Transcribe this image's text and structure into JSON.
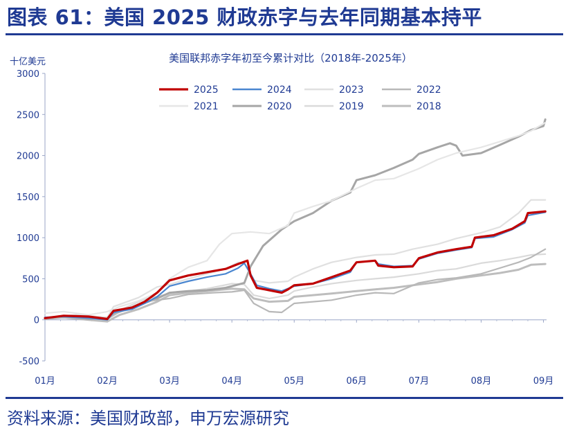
{
  "figure_title": "图表 61：美国 2025 财政赤字与去年同期基本持平",
  "source_note": "资料来源：美国财政部，申万宏源研究",
  "colors": {
    "brand": "#1f3a93",
    "axis_text": "#1f3a93",
    "axis_line": "#9aa6c7"
  },
  "chart_data": {
    "type": "line",
    "title": "美国联邦赤字年初至今累计对比（2018年-2025年）",
    "ylabel": "十亿美元",
    "xlabel": "",
    "ylim": [
      -500,
      3000
    ],
    "yticks": [
      -500,
      0,
      500,
      1000,
      1500,
      2000,
      2500,
      3000
    ],
    "xlim": [
      1,
      9.05
    ],
    "xtick_labels": [
      "01月",
      "02月",
      "03月",
      "04月",
      "05月",
      "06月",
      "07月",
      "08月",
      "09月"
    ],
    "grid": false,
    "legend_position": "top-center",
    "series": [
      {
        "name": "2025",
        "color": "#c00000",
        "width": 3.2,
        "points": [
          [
            1,
            20
          ],
          [
            1.3,
            50
          ],
          [
            1.7,
            40
          ],
          [
            2,
            10
          ],
          [
            2.1,
            110
          ],
          [
            2.4,
            150
          ],
          [
            2.6,
            220
          ],
          [
            2.8,
            330
          ],
          [
            3,
            480
          ],
          [
            3.3,
            540
          ],
          [
            3.6,
            580
          ],
          [
            3.9,
            620
          ],
          [
            4.1,
            680
          ],
          [
            4.25,
            720
          ],
          [
            4.3,
            540
          ],
          [
            4.4,
            390
          ],
          [
            4.6,
            360
          ],
          [
            4.8,
            330
          ],
          [
            4.9,
            370
          ],
          [
            5,
            420
          ],
          [
            5.3,
            440
          ],
          [
            5.6,
            520
          ],
          [
            5.9,
            600
          ],
          [
            6,
            700
          ],
          [
            6.3,
            720
          ],
          [
            6.35,
            660
          ],
          [
            6.6,
            640
          ],
          [
            6.9,
            650
          ],
          [
            7,
            750
          ],
          [
            7.3,
            820
          ],
          [
            7.6,
            860
          ],
          [
            7.85,
            890
          ],
          [
            7.9,
            1000
          ],
          [
            8.2,
            1030
          ],
          [
            8.5,
            1110
          ],
          [
            8.7,
            1200
          ],
          [
            8.75,
            1300
          ],
          [
            9.03,
            1320
          ]
        ]
      },
      {
        "name": "2024",
        "color": "#4a86d0",
        "width": 2.2,
        "points": [
          [
            1,
            30
          ],
          [
            1.3,
            40
          ],
          [
            1.7,
            20
          ],
          [
            2,
            0
          ],
          [
            2.1,
            90
          ],
          [
            2.4,
            130
          ],
          [
            2.6,
            200
          ],
          [
            2.8,
            280
          ],
          [
            3,
            410
          ],
          [
            3.3,
            470
          ],
          [
            3.6,
            520
          ],
          [
            3.9,
            560
          ],
          [
            4.1,
            630
          ],
          [
            4.2,
            690
          ],
          [
            4.3,
            560
          ],
          [
            4.4,
            420
          ],
          [
            4.6,
            380
          ],
          [
            4.8,
            350
          ],
          [
            4.9,
            380
          ],
          [
            5,
            410
          ],
          [
            5.3,
            440
          ],
          [
            5.6,
            500
          ],
          [
            5.9,
            580
          ],
          [
            6,
            700
          ],
          [
            6.3,
            720
          ],
          [
            6.35,
            680
          ],
          [
            6.6,
            650
          ],
          [
            6.9,
            660
          ],
          [
            7,
            740
          ],
          [
            7.3,
            810
          ],
          [
            7.6,
            850
          ],
          [
            7.85,
            880
          ],
          [
            7.9,
            990
          ],
          [
            8.2,
            1010
          ],
          [
            8.5,
            1100
          ],
          [
            8.7,
            1180
          ],
          [
            8.75,
            1270
          ],
          [
            9.03,
            1310
          ]
        ]
      },
      {
        "name": "2023",
        "color": "#e0e0e0",
        "width": 2.2,
        "points": [
          [
            1,
            30
          ],
          [
            1.5,
            60
          ],
          [
            2,
            30
          ],
          [
            2.1,
            160
          ],
          [
            2.5,
            270
          ],
          [
            2.8,
            400
          ],
          [
            3,
            430
          ],
          [
            3.3,
            500
          ],
          [
            3.6,
            560
          ],
          [
            3.9,
            620
          ],
          [
            4.1,
            700
          ],
          [
            4.2,
            690
          ],
          [
            4.35,
            480
          ],
          [
            4.6,
            450
          ],
          [
            4.9,
            470
          ],
          [
            5,
            520
          ],
          [
            5.3,
            620
          ],
          [
            5.6,
            700
          ],
          [
            6,
            760
          ],
          [
            6.3,
            790
          ],
          [
            6.6,
            800
          ],
          [
            6.9,
            860
          ],
          [
            7.3,
            920
          ],
          [
            7.6,
            990
          ],
          [
            8,
            1060
          ],
          [
            8.3,
            1130
          ],
          [
            8.6,
            1300
          ],
          [
            8.8,
            1460
          ],
          [
            9.03,
            1460
          ]
        ]
      },
      {
        "name": "2022",
        "color": "#b8b8b8",
        "width": 2.2,
        "points": [
          [
            1,
            30
          ],
          [
            1.5,
            20
          ],
          [
            2,
            10
          ],
          [
            2.2,
            100
          ],
          [
            2.6,
            220
          ],
          [
            3,
            260
          ],
          [
            3.3,
            310
          ],
          [
            3.7,
            330
          ],
          [
            4,
            340
          ],
          [
            4.2,
            360
          ],
          [
            4.35,
            200
          ],
          [
            4.6,
            100
          ],
          [
            4.8,
            90
          ],
          [
            5,
            200
          ],
          [
            5.3,
            220
          ],
          [
            5.6,
            240
          ],
          [
            6,
            300
          ],
          [
            6.3,
            330
          ],
          [
            6.6,
            320
          ],
          [
            7,
            450
          ],
          [
            7.3,
            490
          ],
          [
            7.6,
            510
          ],
          [
            8,
            560
          ],
          [
            8.3,
            630
          ],
          [
            8.6,
            700
          ],
          [
            8.8,
            760
          ],
          [
            9.03,
            860
          ]
        ]
      },
      {
        "name": "2021",
        "color": "#e6e6e6",
        "width": 2.2,
        "points": [
          [
            1,
            80
          ],
          [
            1.3,
            100
          ],
          [
            1.7,
            60
          ],
          [
            2,
            100
          ],
          [
            2.2,
            160
          ],
          [
            2.5,
            230
          ],
          [
            2.8,
            330
          ],
          [
            3,
            500
          ],
          [
            3.3,
            640
          ],
          [
            3.6,
            720
          ],
          [
            3.8,
            920
          ],
          [
            4,
            1050
          ],
          [
            4.3,
            1070
          ],
          [
            4.6,
            1050
          ],
          [
            4.9,
            1150
          ],
          [
            5,
            1300
          ],
          [
            5.3,
            1380
          ],
          [
            5.6,
            1450
          ],
          [
            6,
            1600
          ],
          [
            6.3,
            1700
          ],
          [
            6.6,
            1720
          ],
          [
            7,
            1840
          ],
          [
            7.3,
            1950
          ],
          [
            7.6,
            2030
          ],
          [
            8,
            2100
          ],
          [
            8.3,
            2170
          ],
          [
            8.6,
            2240
          ],
          [
            8.8,
            2300
          ],
          [
            9.03,
            2400
          ]
        ]
      },
      {
        "name": "2020",
        "color": "#a6a6a6",
        "width": 3.0,
        "points": [
          [
            1,
            20
          ],
          [
            1.3,
            30
          ],
          [
            1.7,
            10
          ],
          [
            2,
            30
          ],
          [
            2.2,
            100
          ],
          [
            2.5,
            180
          ],
          [
            2.8,
            260
          ],
          [
            3,
            330
          ],
          [
            3.3,
            350
          ],
          [
            3.6,
            360
          ],
          [
            3.9,
            390
          ],
          [
            4.2,
            450
          ],
          [
            4.3,
            650
          ],
          [
            4.5,
            900
          ],
          [
            4.8,
            1100
          ],
          [
            5,
            1200
          ],
          [
            5.3,
            1300
          ],
          [
            5.6,
            1450
          ],
          [
            5.9,
            1550
          ],
          [
            6,
            1700
          ],
          [
            6.3,
            1760
          ],
          [
            6.6,
            1850
          ],
          [
            6.9,
            1950
          ],
          [
            7,
            2020
          ],
          [
            7.3,
            2100
          ],
          [
            7.5,
            2150
          ],
          [
            7.6,
            2120
          ],
          [
            7.7,
            2000
          ],
          [
            8,
            2030
          ],
          [
            8.3,
            2130
          ],
          [
            8.6,
            2230
          ],
          [
            8.8,
            2310
          ],
          [
            9,
            2360
          ],
          [
            9.03,
            2440
          ]
        ]
      },
      {
        "name": "2019",
        "color": "#dadada",
        "width": 2.2,
        "points": [
          [
            1,
            30
          ],
          [
            1.5,
            40
          ],
          [
            2,
            10
          ],
          [
            2.3,
            150
          ],
          [
            2.6,
            250
          ],
          [
            3,
            320
          ],
          [
            3.3,
            350
          ],
          [
            3.6,
            380
          ],
          [
            4,
            440
          ],
          [
            4.2,
            430
          ],
          [
            4.35,
            300
          ],
          [
            4.6,
            260
          ],
          [
            4.9,
            300
          ],
          [
            5,
            350
          ],
          [
            5.3,
            400
          ],
          [
            5.6,
            440
          ],
          [
            6,
            480
          ],
          [
            6.3,
            500
          ],
          [
            6.6,
            520
          ],
          [
            7,
            560
          ],
          [
            7.3,
            600
          ],
          [
            7.6,
            620
          ],
          [
            8,
            690
          ],
          [
            8.3,
            720
          ],
          [
            8.6,
            760
          ],
          [
            8.8,
            790
          ],
          [
            9.03,
            800
          ]
        ]
      },
      {
        "name": "2018",
        "color": "#bdbdbd",
        "width": 3.0,
        "points": [
          [
            1,
            10
          ],
          [
            1.3,
            30
          ],
          [
            1.7,
            0
          ],
          [
            2,
            -20
          ],
          [
            2.2,
            60
          ],
          [
            2.5,
            130
          ],
          [
            2.8,
            220
          ],
          [
            3,
            300
          ],
          [
            3.3,
            330
          ],
          [
            3.6,
            350
          ],
          [
            4,
            380
          ],
          [
            4.2,
            370
          ],
          [
            4.35,
            260
          ],
          [
            4.6,
            220
          ],
          [
            4.9,
            230
          ],
          [
            5,
            280
          ],
          [
            5.3,
            300
          ],
          [
            5.6,
            320
          ],
          [
            6,
            350
          ],
          [
            6.3,
            370
          ],
          [
            6.6,
            390
          ],
          [
            7,
            430
          ],
          [
            7.3,
            460
          ],
          [
            7.6,
            500
          ],
          [
            8,
            540
          ],
          [
            8.3,
            570
          ],
          [
            8.6,
            610
          ],
          [
            8.8,
            670
          ],
          [
            9.03,
            680
          ]
        ]
      }
    ]
  }
}
